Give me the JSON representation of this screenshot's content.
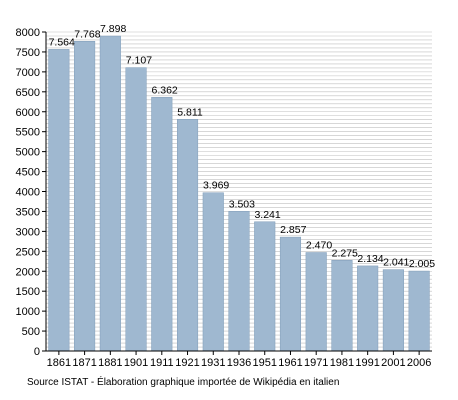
{
  "chart_data": {
    "type": "bar",
    "categories": [
      "1861",
      "1871",
      "1881",
      "1901",
      "1911",
      "1921",
      "1931",
      "1936",
      "1951",
      "1961",
      "1971",
      "1981",
      "1991",
      "2001",
      "2006"
    ],
    "values": [
      7564,
      7768,
      7898,
      7107,
      6362,
      5811,
      3969,
      3503,
      3241,
      2857,
      2470,
      2275,
      2134,
      2041,
      2005
    ],
    "value_labels": [
      "7.564",
      "7.768",
      "7.898",
      "7.107",
      "6.362",
      "5.811",
      "3.969",
      "3.503",
      "3.241",
      "2.857",
      "2.470",
      "2.275",
      "2.134",
      "2.041",
      "2.005"
    ],
    "title": "",
    "xlabel": "",
    "ylabel": "",
    "ylim": [
      0,
      8000
    ],
    "yticks": [
      0,
      500,
      1000,
      1500,
      2000,
      2500,
      3000,
      3500,
      4000,
      4500,
      5000,
      5500,
      6000,
      6500,
      7000,
      7500,
      8000
    ],
    "grid": true,
    "legend": "none",
    "colors": {
      "bar": "#9fb8d0",
      "bar_edge": "#7f9cb8",
      "grid": "#bfbfbf"
    }
  },
  "source": "Source ISTAT - Élaboration graphique importée de Wikipédia en italien"
}
